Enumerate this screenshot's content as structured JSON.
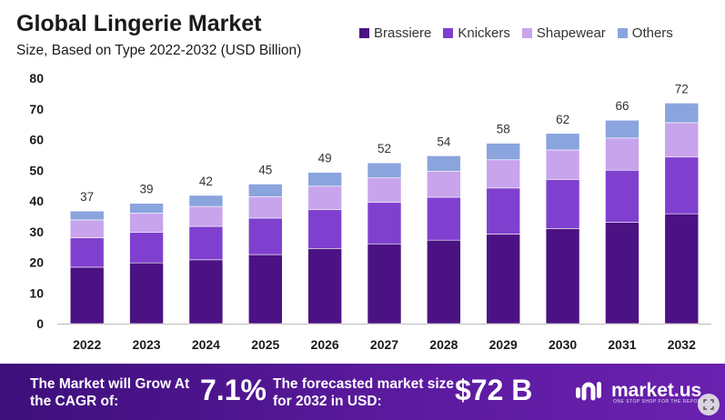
{
  "header": {
    "title": "Global Lingerie Market",
    "subtitle": "Size, Based on Type 2022-2032 (USD Billion)"
  },
  "colors": {
    "brassiere": "#4b1283",
    "knickers": "#8040cf",
    "shapewear": "#c8a4ec",
    "others": "#8aa4de",
    "footer": "#4b148a"
  },
  "chart_data": {
    "type": "bar",
    "stacked": true,
    "title": "Global Lingerie Market",
    "subtitle": "Size, Based on Type 2022-2032 (USD Billion)",
    "xlabel": "",
    "ylabel": "",
    "ylim": [
      0,
      80
    ],
    "yticks": [
      "0",
      "10",
      "20",
      "30",
      "40",
      "50",
      "60",
      "70",
      "80"
    ],
    "categories": [
      "2022",
      "2023",
      "2024",
      "2025",
      "2026",
      "2027",
      "2028",
      "2029",
      "2030",
      "2031",
      "2032"
    ],
    "series": [
      {
        "name": "Brassiere",
        "values": [
          18.4,
          19.8,
          20.8,
          22.5,
          24.5,
          26.0,
          27.2,
          29.2,
          31.0,
          33.0,
          35.8
        ]
      },
      {
        "name": "Knickers",
        "values": [
          9.6,
          10.0,
          10.9,
          11.9,
          12.7,
          13.5,
          14.0,
          15.0,
          16.0,
          17.0,
          18.5
        ]
      },
      {
        "name": "Shapewear",
        "values": [
          5.8,
          6.2,
          6.5,
          7.0,
          7.6,
          8.0,
          8.5,
          9.2,
          9.6,
          10.5,
          11.2
        ]
      },
      {
        "name": "Others",
        "values": [
          2.9,
          3.2,
          3.6,
          4.1,
          4.5,
          4.9,
          5.0,
          5.4,
          5.4,
          5.8,
          6.4
        ]
      }
    ],
    "totals": [
      "37",
      "39",
      "42",
      "45",
      "49",
      "52",
      "54",
      "58",
      "62",
      "66",
      "72"
    ],
    "legend_position": "top-right",
    "grid": false
  },
  "footer": {
    "cagr_label": "The Market will Grow At the CAGR of:",
    "cagr_value": "7.1%",
    "forecast_label": "The forecasted market size for 2032 in USD:",
    "forecast_value": "$72 B",
    "brand": "market.us",
    "brand_tagline": "ONE STOP SHOP FOR THE REPORTS"
  }
}
